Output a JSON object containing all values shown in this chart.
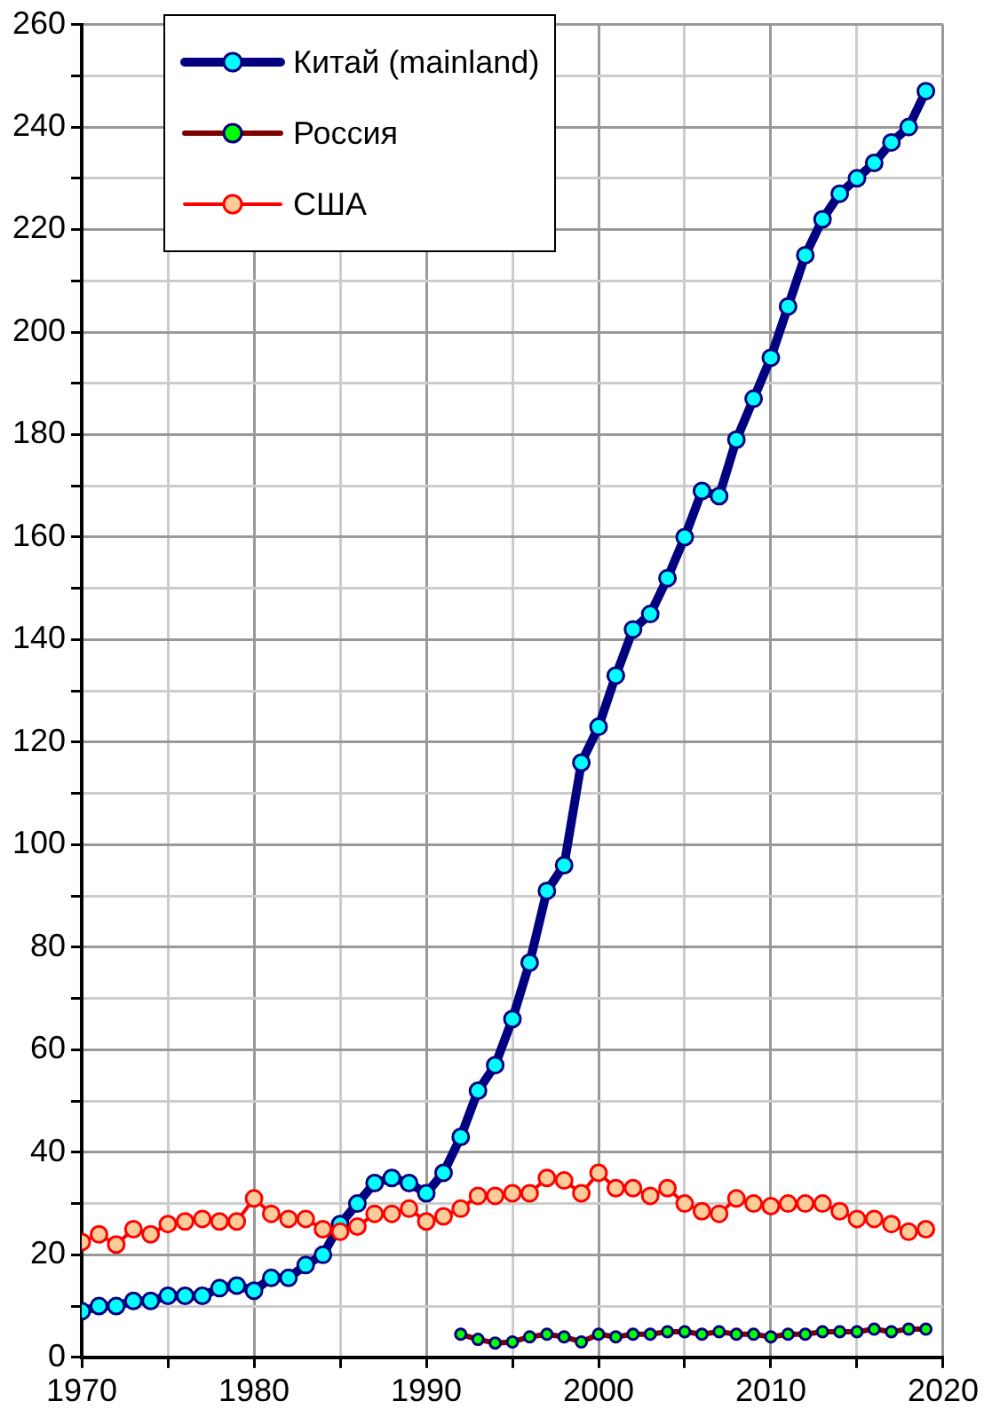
{
  "chart_data": {
    "type": "line",
    "x": [
      1970,
      1971,
      1972,
      1973,
      1974,
      1975,
      1976,
      1977,
      1978,
      1979,
      1980,
      1981,
      1982,
      1983,
      1984,
      1985,
      1986,
      1987,
      1988,
      1989,
      1990,
      1991,
      1992,
      1993,
      1994,
      1995,
      1996,
      1997,
      1998,
      1999,
      2000,
      2001,
      2002,
      2003,
      2004,
      2005,
      2006,
      2007,
      2008,
      2009,
      2010,
      2011,
      2012,
      2013,
      2014,
      2015,
      2016,
      2017,
      2018,
      2019
    ],
    "series": [
      {
        "name": "Китай (mainland)",
        "color": "#000080",
        "colors": [
          "#00ffff",
          "#00ffff",
          "#00ffff",
          "#00ffff",
          "#00ffff",
          "#00ffff",
          "#00ffff",
          "#00ffff",
          "#00ffff",
          "#00ffff",
          "#00ffff",
          "#00ffff",
          "#00ffff",
          "#00ffff",
          "#00ffff",
          "#00ffff",
          "#00ffff",
          "#00ffff",
          "#00ffff",
          "#00ffff",
          "#00ffff",
          "#00ffff",
          "#00ffff",
          "#00ffff",
          "#00ffff",
          "#00ffff",
          "#00ffff",
          "#00ffff",
          "#00ffff",
          "#00ffff",
          "#00ffff",
          "#00ffff",
          "#00ffff",
          "#00ffff",
          "#00ffff",
          "#00ffff",
          "#00ffff",
          "#00ffff",
          "#00ffff",
          "#00ffff",
          "#00ffff",
          "#00ffff",
          "#00ffff",
          "#00ffff",
          "#00ffff",
          "#00ffff",
          "#00ffff",
          "#00ffff",
          "#00ffff",
          "#00ffff"
        ],
        "values": [
          9,
          10,
          10,
          11,
          11,
          12,
          12,
          12,
          13.5,
          14,
          13,
          15.5,
          15.5,
          18,
          20,
          26,
          30,
          34,
          35,
          34,
          32,
          36,
          43,
          52,
          57,
          66,
          77,
          91,
          96,
          116,
          123,
          133,
          142,
          145,
          152,
          160,
          169,
          168,
          179,
          187,
          195,
          205,
          215,
          222,
          227,
          230,
          233,
          237,
          240,
          247
        ]
      },
      {
        "name": "Россия",
        "color": "#800000",
        "colors": [
          "#00ff00",
          "#00ff00",
          "#00ff00",
          "#00ff00",
          "#00ff00",
          "#00ff00",
          "#00ff00",
          "#00ff00",
          "#00ff00",
          "#00ff00",
          "#00ff00",
          "#00ff00",
          "#00ff00",
          "#00ff00",
          "#00ff00",
          "#00ff00",
          "#00ff00",
          "#00ff00",
          "#00ff00",
          "#00ff00",
          "#00ff00",
          "#00ff00",
          "#00ff00",
          "#00ff00",
          "#00ff00",
          "#00ff00",
          "#00ff00",
          "#00ff00",
          "#00ff00",
          "#00ff00",
          "#00ff00",
          "#00ff00",
          "#00ff00",
          "#00ff00",
          "#00ff00",
          "#00ff00",
          "#00ff00",
          "#00ff00",
          "#00ff00",
          "#00ff00",
          "#00ff00",
          "#00ff00",
          "#00ff00",
          "#00ff00",
          "#00ff00",
          "#00ff00",
          "#00ff00",
          "#00ff00",
          "#00ff00",
          "#00ff00"
        ],
        "values": [
          null,
          null,
          null,
          null,
          null,
          null,
          null,
          null,
          null,
          null,
          null,
          null,
          null,
          null,
          null,
          null,
          null,
          null,
          null,
          null,
          null,
          null,
          4.5,
          3.5,
          2.8,
          3,
          4,
          4.5,
          4,
          3,
          4.5,
          4,
          4.5,
          4.5,
          5,
          5,
          4.5,
          5,
          4.5,
          4.5,
          4,
          4.5,
          4.5,
          5,
          5,
          5,
          5.5,
          5,
          5.5,
          5.5
        ]
      },
      {
        "name": "США",
        "color": "#ff0000",
        "colors": [
          "#ffcc99",
          "#ffcc99",
          "#ffcc99",
          "#ffcc99",
          "#ffcc99",
          "#ffcc99",
          "#ffcc99",
          "#ffcc99",
          "#ffcc99",
          "#ffcc99",
          "#ffcc99",
          "#ffcc99",
          "#ffcc99",
          "#ffcc99",
          "#ffcc99",
          "#ffcc99",
          "#ffcc99",
          "#ffcc99",
          "#ffcc99",
          "#ffcc99",
          "#ffcc99",
          "#ffcc99",
          "#ffcc99",
          "#ffcc99",
          "#ffcc99",
          "#ffcc99",
          "#ffcc99",
          "#ffcc99",
          "#ffcc99",
          "#ffcc99",
          "#ffcc99",
          "#ffcc99",
          "#ffcc99",
          "#ffcc99",
          "#ffcc99",
          "#ffcc99",
          "#ffcc99",
          "#ffcc99",
          "#ffcc99",
          "#ffcc99",
          "#ffcc99",
          "#ffcc99",
          "#ffcc99",
          "#ffcc99",
          "#ffcc99",
          "#ffcc99",
          "#ffcc99",
          "#ffcc99",
          "#ffcc99",
          "#ffcc99"
        ],
        "values": [
          22.5,
          24,
          22,
          25,
          24,
          26,
          26.5,
          27,
          26.5,
          26.5,
          31,
          28,
          27,
          27,
          25,
          24.5,
          25.5,
          28,
          28,
          29,
          26.5,
          27.5,
          29,
          31.5,
          31.5,
          32,
          32,
          35,
          34.5,
          32,
          36,
          33,
          33,
          31.5,
          33,
          30,
          28.5,
          28,
          31,
          30,
          29.5,
          30,
          30,
          30,
          28.5,
          27,
          27,
          26,
          24.5,
          25
        ]
      }
    ],
    "xlim": [
      1970,
      2020
    ],
    "xticks": [
      1970,
      {
        "value": 1975,
        "label": null
      },
      1980,
      {
        "value": 1985,
        "label": null
      },
      1990,
      {
        "value": 1995,
        "label": null
      },
      2000,
      {
        "value": 2005,
        "label": null
      },
      2010,
      {
        "value": 2015,
        "label": null
      },
      2020
    ],
    "ylim": [
      0,
      260
    ],
    "yticks": [
      0,
      {
        "value": 10,
        "label": null
      },
      20,
      {
        "value": 30,
        "label": null
      },
      40,
      {
        "value": 50,
        "label": null
      },
      60,
      {
        "value": 70,
        "label": null
      },
      80,
      {
        "value": 90,
        "label": null
      },
      100,
      {
        "value": 110,
        "label": null
      },
      120,
      {
        "value": 130,
        "label": null
      },
      140,
      {
        "value": 150,
        "label": null
      },
      160,
      {
        "value": 170,
        "label": null
      },
      180,
      {
        "value": 190,
        "label": null
      },
      200,
      {
        "value": 210,
        "label": null
      },
      220,
      {
        "value": 230,
        "label": null
      },
      240,
      {
        "value": 250,
        "label": null
      },
      260
    ],
    "grid": true,
    "legend": "top left",
    "marker": "circle",
    "line_style": "solid"
  }
}
